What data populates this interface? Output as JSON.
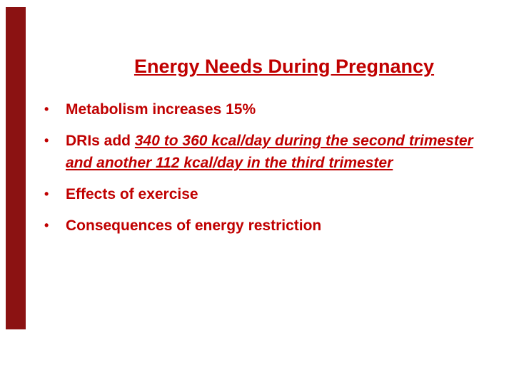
{
  "slide": {
    "title": "Energy Needs During Pregnancy",
    "bullet_char": "•",
    "colors": {
      "text": "#c00000",
      "bar": "#8b1212",
      "background": "#ffffff"
    },
    "bullets": [
      {
        "segments": [
          {
            "text": "Metabolism increases 15%",
            "style": "normal"
          }
        ]
      },
      {
        "segments": [
          {
            "text": "DRIs add ",
            "style": "normal"
          },
          {
            "text": "340 to 360 kcal/day during the second trimester and another 112 kcal/day in the third trimester",
            "style": "italic-underline"
          }
        ]
      },
      {
        "segments": [
          {
            "text": "Effects of exercise",
            "style": "normal"
          }
        ]
      },
      {
        "segments": [
          {
            "text": "Consequences of energy restriction",
            "style": "normal"
          }
        ]
      }
    ]
  }
}
